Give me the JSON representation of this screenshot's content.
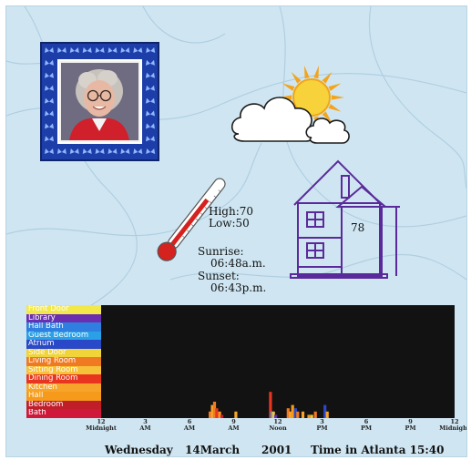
{
  "weather": {
    "high": "High:70",
    "low": "Low:50",
    "sunrise_label": "Sunrise:",
    "sunrise_time": "06:48a.m.",
    "sunset_label": "Sunset:",
    "sunset_time": "06:43p.m.",
    "icon": "partly-cloudy-icon"
  },
  "house": {
    "indoor_temp": "78",
    "icon": "house-icon"
  },
  "thermometer": {
    "icon": "thermometer-icon"
  },
  "portrait": {
    "icon": "portrait-photo"
  },
  "activity": {
    "rooms": [
      {
        "name": "Front Door",
        "color": "#f2e84a"
      },
      {
        "name": "Library",
        "color": "#6a2fb0"
      },
      {
        "name": "Hall Bath",
        "color": "#2f7fe0"
      },
      {
        "name": "Guest Bedroom",
        "color": "#2aa0e6"
      },
      {
        "name": "Atrium",
        "color": "#2a49c8"
      },
      {
        "name": "Side Door",
        "color": "#f0d43a"
      },
      {
        "name": "Living Room",
        "color": "#f07a22"
      },
      {
        "name": "Sitting Room",
        "color": "#f5c23a"
      },
      {
        "name": "Dining Room",
        "color": "#e8351f"
      },
      {
        "name": "Kitchen",
        "color": "#f7a52a"
      },
      {
        "name": "Hall",
        "color": "#f59a1a"
      },
      {
        "name": "Bedroom",
        "color": "#c01f2a"
      },
      {
        "name": "Bath",
        "color": "#d0183a"
      }
    ],
    "ticks": [
      {
        "hour": 0,
        "num": "12",
        "sub": "Midnight"
      },
      {
        "hour": 3,
        "num": "3",
        "sub": "AM"
      },
      {
        "hour": 6,
        "num": "6",
        "sub": "AM"
      },
      {
        "hour": 9,
        "num": "9",
        "sub": "AM"
      },
      {
        "hour": 12,
        "num": "12",
        "sub": "Noon"
      },
      {
        "hour": 15,
        "num": "3",
        "sub": "PM"
      },
      {
        "hour": 18,
        "num": "6",
        "sub": "PM"
      },
      {
        "hour": 21,
        "num": "9",
        "sub": "PM"
      },
      {
        "hour": 24,
        "num": "12",
        "sub": "Midnight"
      }
    ],
    "events": [
      {
        "hour": 7.4,
        "count": 2,
        "room": "Living Room"
      },
      {
        "hour": 7.55,
        "count": 4,
        "room": "Kitchen"
      },
      {
        "hour": 7.7,
        "count": 5,
        "room": "Living Room"
      },
      {
        "hour": 7.85,
        "count": 3,
        "room": "Dining Room"
      },
      {
        "hour": 8.05,
        "count": 2,
        "room": "Hall"
      },
      {
        "hour": 8.2,
        "count": 1,
        "room": "Bath"
      },
      {
        "hour": 9.15,
        "count": 2,
        "room": "Kitchen"
      },
      {
        "hour": 11.5,
        "count": 8,
        "room": "Dining Room"
      },
      {
        "hour": 11.6,
        "count": 2,
        "room": "Guest Bedroom"
      },
      {
        "hour": 11.7,
        "count": 2,
        "room": "Sitting Room"
      },
      {
        "hour": 11.85,
        "count": 1,
        "room": "Library"
      },
      {
        "hour": 12.7,
        "count": 3,
        "room": "Living Room"
      },
      {
        "hour": 12.85,
        "count": 2,
        "room": "Kitchen"
      },
      {
        "hour": 13.0,
        "count": 4,
        "room": "Hall"
      },
      {
        "hour": 13.2,
        "count": 3,
        "room": "Atrium"
      },
      {
        "hour": 13.35,
        "count": 2,
        "room": "Living Room"
      },
      {
        "hour": 13.7,
        "count": 2,
        "room": "Kitchen"
      },
      {
        "hour": 14.1,
        "count": 1,
        "room": "Hall"
      },
      {
        "hour": 14.3,
        "count": 1,
        "room": "Sitting Room"
      },
      {
        "hour": 14.55,
        "count": 2,
        "room": "Living Room"
      },
      {
        "hour": 15.2,
        "count": 4,
        "room": "Atrium"
      },
      {
        "hour": 15.35,
        "count": 2,
        "room": "Kitchen"
      }
    ]
  },
  "footer": {
    "day": "Wednesday",
    "date": "14March",
    "year": "2001",
    "time_label": "Time in Atlanta 15:40"
  }
}
